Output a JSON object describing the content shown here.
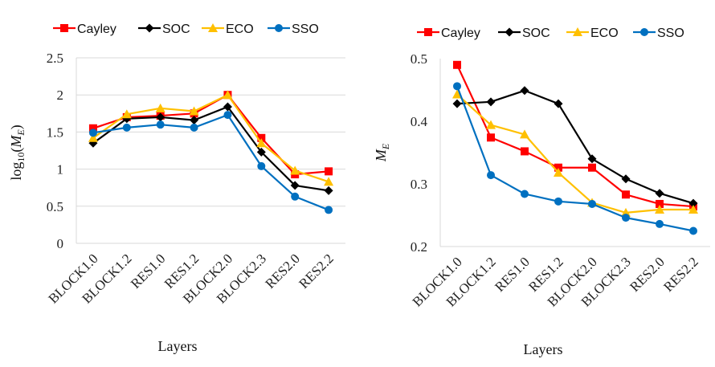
{
  "chart_data": [
    {
      "type": "line",
      "categories": [
        "BLOCK1.0",
        "BLOCK1.2",
        "RES1.0",
        "RES1.2",
        "BLOCK2.0",
        "BLOCK2.3",
        "RES2.0",
        "RES2.2"
      ],
      "series": [
        {
          "name": "Cayley",
          "color": "#ff0000",
          "marker": "square",
          "values": [
            1.55,
            1.7,
            1.72,
            1.75,
            2.0,
            1.42,
            0.93,
            0.97
          ]
        },
        {
          "name": "SOC",
          "color": "#000000",
          "marker": "diamond",
          "values": [
            1.35,
            1.68,
            1.7,
            1.66,
            1.84,
            1.23,
            0.78,
            0.71
          ]
        },
        {
          "name": "ECO",
          "color": "#ffc000",
          "marker": "triangle",
          "values": [
            1.42,
            1.74,
            1.82,
            1.78,
            2.0,
            1.35,
            0.98,
            0.83
          ]
        },
        {
          "name": "SSO",
          "color": "#0070c0",
          "marker": "circle",
          "values": [
            1.49,
            1.56,
            1.6,
            1.56,
            1.73,
            1.04,
            0.63,
            0.45
          ]
        }
      ],
      "xlabel": "Layers",
      "ylabel": "log10(M_E)",
      "ylabel_parts": {
        "fn": "log",
        "sub": "10",
        "open": "(",
        "var": "M",
        "var_sub": "E",
        "close": ")"
      },
      "ylim": [
        0,
        2.5
      ],
      "yticks": [
        "0",
        "0.5",
        "1",
        "1.5",
        "2",
        "2.5"
      ],
      "grid": true,
      "legend": "top"
    },
    {
      "type": "line",
      "categories": [
        "BLOCK1.0",
        "BLOCK1.2",
        "RES1.0",
        "RES1.2",
        "BLOCK2.0",
        "BLOCK2.3",
        "RES2.0",
        "RES2.2"
      ],
      "series": [
        {
          "name": "Cayley",
          "color": "#ff0000",
          "marker": "square",
          "values": [
            0.49,
            0.374,
            0.352,
            0.326,
            0.326,
            0.283,
            0.268,
            0.264
          ]
        },
        {
          "name": "SOC",
          "color": "#000000",
          "marker": "diamond",
          "values": [
            0.428,
            0.431,
            0.449,
            0.428,
            0.34,
            0.308,
            0.285,
            0.269
          ]
        },
        {
          "name": "ECO",
          "color": "#ffc000",
          "marker": "triangle",
          "values": [
            0.443,
            0.394,
            0.379,
            0.318,
            0.27,
            0.254,
            0.259,
            0.259
          ]
        },
        {
          "name": "SSO",
          "color": "#0070c0",
          "marker": "circle",
          "values": [
            0.456,
            0.314,
            0.284,
            0.272,
            0.268,
            0.246,
            0.236,
            0.225
          ]
        }
      ],
      "xlabel": "Layers",
      "ylabel": "M_E",
      "ylabel_parts": {
        "var": "M",
        "var_sub": "E"
      },
      "ylim": [
        0.2,
        0.5
      ],
      "yticks": [
        "0.2",
        "0.3",
        "0.4",
        "0.5"
      ],
      "grid": false,
      "legend": "top"
    }
  ]
}
